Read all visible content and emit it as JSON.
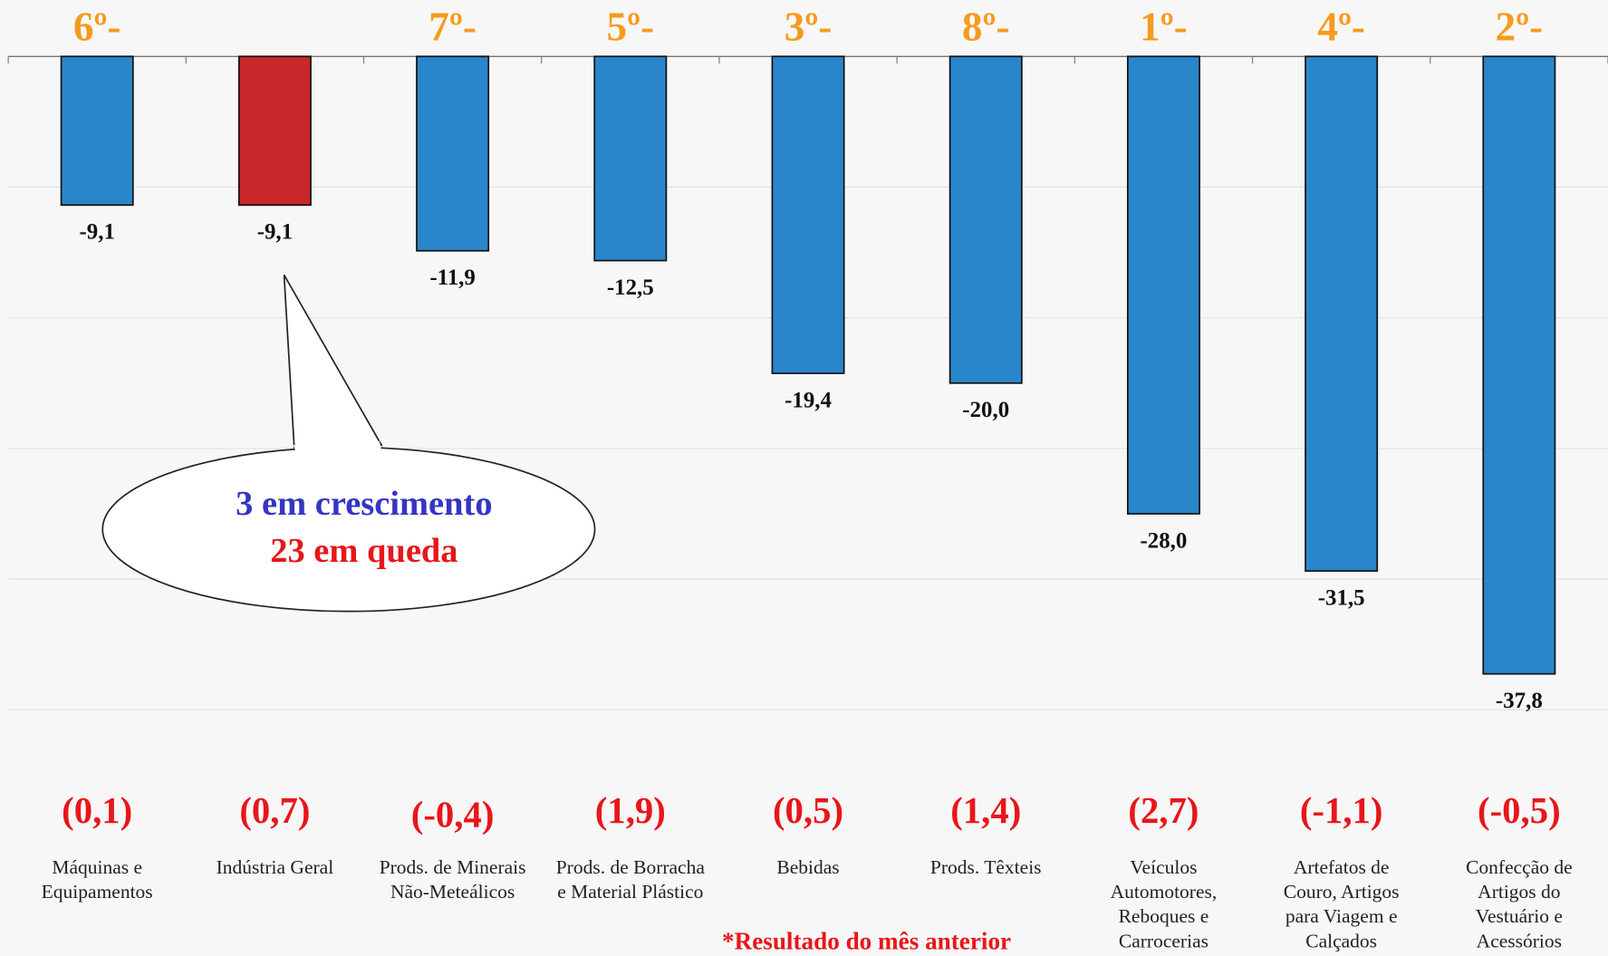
{
  "chart_data": {
    "type": "bar",
    "categories": [
      "Máquinas e\nEquipamentos",
      "Indústria Geral",
      "Prods. de Minerais\nNão-Meteálicos",
      "Prods. de Borracha\ne Material Plástico",
      "Bebidas",
      "Prods. Têxteis",
      "Veículos\nAutomotores,\nReboques e\nCarrocerias",
      "Artefatos de\nCouro, Artigos\npara Viagem e\nCalçados",
      "Confecção de\nArtigos do\nVestuário e\nAcessórios"
    ],
    "values": [
      -9.1,
      -9.1,
      -11.9,
      -12.5,
      -19.4,
      -20.0,
      -28.0,
      -31.5,
      -37.8
    ],
    "value_labels": [
      "-9,1",
      "-9,1",
      "-11,9",
      "-12,5",
      "-19,4",
      "-20,0",
      "-28,0",
      "-31,5",
      "-37,8"
    ],
    "colors": [
      "#2a86cb",
      "#c8282a",
      "#2a86cb",
      "#2a86cb",
      "#2a86cb",
      "#2a86cb",
      "#2a86cb",
      "#2a86cb",
      "#2a86cb"
    ],
    "ranks": [
      "6º-",
      null,
      "7º-",
      "5º-",
      "3º-",
      "8º-",
      "1º-",
      "4º-",
      "2º-"
    ],
    "previous": [
      0.1,
      0.7,
      -0.4,
      1.9,
      0.5,
      1.4,
      2.7,
      -1.1,
      -0.5
    ],
    "previous_labels": [
      "(0,1)",
      "(0,7)",
      "(-0,4)",
      "(1,9)",
      "(0,5)",
      "(1,4)",
      "(2,7)",
      "(-1,1)",
      "(-0,5)"
    ],
    "ylim": [
      -40,
      0
    ],
    "yticks": [
      0,
      -8,
      -16,
      -24,
      -32,
      -40
    ],
    "grid": true,
    "annotation": [
      "3 em crescimento",
      "23 em queda"
    ],
    "footnote": "*Resultado do mês anterior"
  }
}
